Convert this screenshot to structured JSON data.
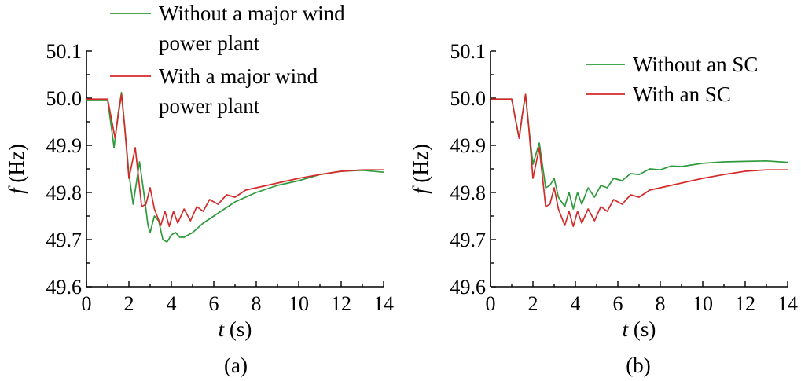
{
  "chart_data": [
    {
      "type": "line",
      "caption": "(a)",
      "xlabel_italic": "t",
      "xlabel_unit": " (s)",
      "ylabel_italic": "f",
      "ylabel_unit": " (Hz)",
      "xlim": [
        0,
        14
      ],
      "ylim": [
        49.6,
        50.1
      ],
      "xticks": [
        "0",
        "2",
        "4",
        "6",
        "8",
        "10",
        "12",
        "14"
      ],
      "yticks": [
        "49.6",
        "49.7",
        "49.8",
        "49.9",
        "50.0",
        "50.1"
      ],
      "grid": false,
      "legend_position": "top",
      "legend": [
        {
          "lines": [
            "Without a major wind",
            "power plant"
          ],
          "color": "#2e9a3c"
        },
        {
          "lines": [
            "With a major wind",
            "power plant"
          ],
          "color": "#d42a2a"
        }
      ],
      "series": [
        {
          "name": "Without a major wind power plant",
          "color": "#2e9a3c",
          "x": [
            0,
            1.0,
            1.2,
            1.3,
            1.5,
            1.65,
            1.8,
            2.0,
            2.2,
            2.5,
            2.7,
            2.9,
            3.0,
            3.2,
            3.4,
            3.6,
            3.8,
            4.0,
            4.2,
            4.4,
            4.6,
            5.0,
            5.5,
            6.0,
            7.0,
            8.0,
            9.0,
            10.0,
            11.0,
            12.0,
            13.0,
            14.0
          ],
          "y": [
            49.995,
            49.995,
            49.93,
            49.895,
            49.97,
            50.012,
            49.94,
            49.84,
            49.775,
            49.865,
            49.8,
            49.73,
            49.715,
            49.75,
            49.74,
            49.7,
            49.695,
            49.71,
            49.715,
            49.705,
            49.705,
            49.715,
            49.735,
            49.75,
            49.78,
            49.8,
            49.815,
            49.825,
            49.838,
            49.845,
            49.847,
            49.843
          ]
        },
        {
          "name": "With a major wind power plant",
          "color": "#d42a2a",
          "x": [
            0,
            1.0,
            1.2,
            1.35,
            1.5,
            1.65,
            1.8,
            2.0,
            2.3,
            2.6,
            2.8,
            3.0,
            3.2,
            3.5,
            3.7,
            3.9,
            4.1,
            4.3,
            4.6,
            4.9,
            5.2,
            5.5,
            5.8,
            6.2,
            6.6,
            7.0,
            7.5,
            8.0,
            8.5,
            9.0,
            10.0,
            11.0,
            12.0,
            13.0,
            14.0
          ],
          "y": [
            49.998,
            49.998,
            49.95,
            49.915,
            49.965,
            50.008,
            49.94,
            49.83,
            49.895,
            49.77,
            49.775,
            49.81,
            49.765,
            49.73,
            49.76,
            49.728,
            49.76,
            49.735,
            49.765,
            49.74,
            49.77,
            49.76,
            49.785,
            49.775,
            49.795,
            49.79,
            49.805,
            49.81,
            49.815,
            49.82,
            49.83,
            49.838,
            49.845,
            49.848,
            49.848
          ]
        }
      ]
    },
    {
      "type": "line",
      "caption": "(b)",
      "xlabel_italic": "t",
      "xlabel_unit": " (s)",
      "ylabel_italic": "f",
      "ylabel_unit": " (Hz)",
      "xlim": [
        0,
        14
      ],
      "ylim": [
        49.6,
        50.1
      ],
      "xticks": [
        "0",
        "2",
        "4",
        "6",
        "8",
        "10",
        "12",
        "14"
      ],
      "yticks": [
        "49.6",
        "49.7",
        "49.8",
        "49.9",
        "50.0",
        "50.1"
      ],
      "grid": false,
      "legend_position": "top-right",
      "legend": [
        {
          "lines": [
            "Without an SC"
          ],
          "color": "#2e9a3c"
        },
        {
          "lines": [
            "With an SC"
          ],
          "color": "#d42a2a"
        }
      ],
      "series": [
        {
          "name": "Without an SC",
          "color": "#2e9a3c",
          "x": [
            0,
            1.0,
            1.2,
            1.35,
            1.5,
            1.65,
            1.8,
            2.0,
            2.3,
            2.6,
            2.8,
            3.0,
            3.2,
            3.5,
            3.7,
            3.9,
            4.1,
            4.3,
            4.6,
            4.9,
            5.2,
            5.5,
            5.8,
            6.2,
            6.6,
            7.0,
            7.5,
            8.0,
            8.5,
            9.0,
            10.0,
            11.0,
            12.0,
            13.0,
            14.0
          ],
          "y": [
            49.998,
            49.998,
            49.95,
            49.915,
            49.965,
            50.008,
            49.94,
            49.86,
            49.905,
            49.81,
            49.815,
            49.83,
            49.79,
            49.77,
            49.8,
            49.765,
            49.8,
            49.775,
            49.81,
            49.79,
            49.815,
            49.81,
            49.83,
            49.825,
            49.84,
            49.838,
            49.85,
            49.848,
            49.856,
            49.855,
            49.862,
            49.865,
            49.866,
            49.867,
            49.864
          ]
        },
        {
          "name": "With an SC",
          "color": "#d42a2a",
          "x": [
            0,
            1.0,
            1.2,
            1.35,
            1.5,
            1.65,
            1.8,
            2.0,
            2.3,
            2.6,
            2.8,
            3.0,
            3.2,
            3.5,
            3.7,
            3.9,
            4.1,
            4.3,
            4.6,
            4.9,
            5.2,
            5.5,
            5.8,
            6.2,
            6.6,
            7.0,
            7.5,
            8.0,
            8.5,
            9.0,
            10.0,
            11.0,
            12.0,
            13.0,
            14.0
          ],
          "y": [
            49.998,
            49.998,
            49.95,
            49.915,
            49.965,
            50.008,
            49.94,
            49.83,
            49.895,
            49.77,
            49.775,
            49.81,
            49.765,
            49.73,
            49.76,
            49.728,
            49.76,
            49.735,
            49.765,
            49.74,
            49.77,
            49.76,
            49.785,
            49.775,
            49.795,
            49.79,
            49.805,
            49.81,
            49.815,
            49.82,
            49.83,
            49.838,
            49.845,
            49.848,
            49.848
          ]
        }
      ]
    }
  ]
}
